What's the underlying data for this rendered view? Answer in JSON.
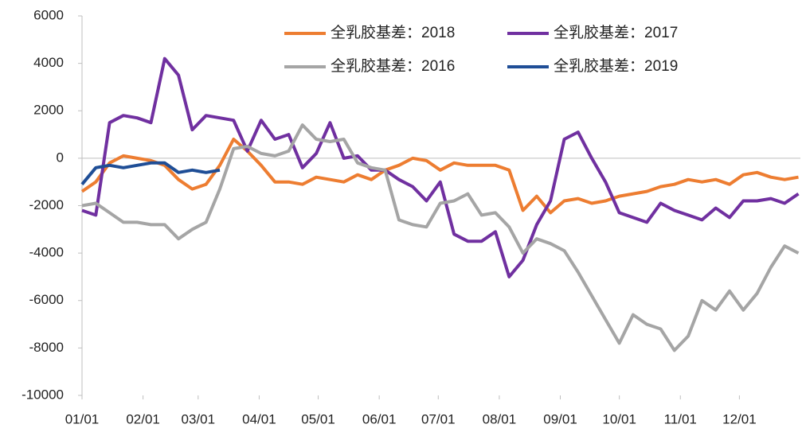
{
  "chart_data": {
    "type": "line",
    "x": [
      0,
      7,
      14,
      21,
      28,
      35,
      42,
      49,
      56,
      63,
      70,
      77,
      84,
      91,
      98,
      105,
      112,
      119,
      126,
      133,
      140,
      147,
      154,
      161,
      168,
      175,
      182,
      189,
      196,
      203,
      210,
      217,
      224,
      231,
      238,
      245,
      252,
      259,
      266,
      273,
      280,
      287,
      294,
      301,
      308,
      315,
      322,
      329,
      336,
      343,
      350,
      357,
      364
    ],
    "xlim": [
      0,
      365
    ],
    "xticks": [
      {
        "value": 0,
        "label": "01/01"
      },
      {
        "value": 31,
        "label": "02/01"
      },
      {
        "value": 59,
        "label": "03/01"
      },
      {
        "value": 90,
        "label": "04/01"
      },
      {
        "value": 120,
        "label": "05/01"
      },
      {
        "value": 151,
        "label": "06/01"
      },
      {
        "value": 181,
        "label": "07/01"
      },
      {
        "value": 212,
        "label": "08/01"
      },
      {
        "value": 243,
        "label": "09/01"
      },
      {
        "value": 273,
        "label": "10/01"
      },
      {
        "value": 304,
        "label": "11/01"
      },
      {
        "value": 334,
        "label": "12/01"
      }
    ],
    "ylim": [
      -10000,
      6000
    ],
    "yticks": [
      -10000,
      -8000,
      -6000,
      -4000,
      -2000,
      0,
      2000,
      4000,
      6000
    ],
    "series": [
      {
        "name": "全乳胶基差：2018",
        "color": "#ed7d31",
        "values": [
          -1400,
          -1000,
          -200,
          100,
          0,
          -100,
          -300,
          -900,
          -1300,
          -1100,
          -300,
          800,
          300,
          -300,
          -1000,
          -1000,
          -1100,
          -800,
          -900,
          -1000,
          -700,
          -900,
          -500,
          -300,
          0,
          -100,
          -500,
          -200,
          -300,
          -300,
          -300,
          -500,
          -2200,
          -1600,
          -2300,
          -1800,
          -1700,
          -1900,
          -1800,
          -1600,
          -1500,
          -1400,
          -1200,
          -1100,
          -900,
          -1000,
          -900,
          -1100,
          -700,
          -600,
          -800,
          -900,
          -800
        ]
      },
      {
        "name": "全乳胶基差：2017",
        "color": "#7030a0",
        "values": [
          -2200,
          -2400,
          1500,
          1800,
          1700,
          1500,
          4200,
          3500,
          1200,
          1800,
          1700,
          1600,
          300,
          1600,
          800,
          1000,
          -400,
          200,
          1500,
          0,
          100,
          -500,
          -500,
          -900,
          -1200,
          -1800,
          -1000,
          -3200,
          -3500,
          -3500,
          -3100,
          -5000,
          -4300,
          -2800,
          -1800,
          800,
          1100,
          0,
          -1000,
          -2300,
          -2500,
          -2700,
          -1900,
          -2200,
          -2400,
          -2600,
          -2100,
          -2500,
          -1800,
          -1800,
          -1700,
          -1900,
          -1500
        ]
      },
      {
        "name": "全乳胶基差：2016",
        "color": "#a5a5a5",
        "values": [
          -2000,
          -1900,
          -2300,
          -2700,
          -2700,
          -2800,
          -2800,
          -3400,
          -3000,
          -2700,
          -1300,
          400,
          500,
          200,
          100,
          300,
          1400,
          800,
          700,
          800,
          -200,
          -400,
          -500,
          -2600,
          -2800,
          -2900,
          -1900,
          -1800,
          -1500,
          -2400,
          -2300,
          -2900,
          -4000,
          -3400,
          -3600,
          -3900,
          -4800,
          -5800,
          -6800,
          -7800,
          -6600,
          -7000,
          -7200,
          -8100,
          -7500,
          -6000,
          -6400,
          -5600,
          -6400,
          -5700,
          -4600,
          -3700,
          -4000
        ]
      },
      {
        "name": "全乳胶基差：2019",
        "color": "#1f4e96",
        "values": [
          -1100,
          -400,
          -300,
          -400,
          -300,
          -200,
          -200,
          -600,
          -500,
          -600,
          -500,
          null,
          null,
          null,
          null,
          null,
          null,
          null,
          null,
          null,
          null,
          null,
          null,
          null,
          null,
          null,
          null,
          null,
          null,
          null,
          null,
          null,
          null,
          null,
          null,
          null,
          null,
          null,
          null,
          null,
          null,
          null,
          null,
          null,
          null,
          null,
          null,
          null,
          null,
          null,
          null,
          null,
          null
        ]
      }
    ]
  }
}
